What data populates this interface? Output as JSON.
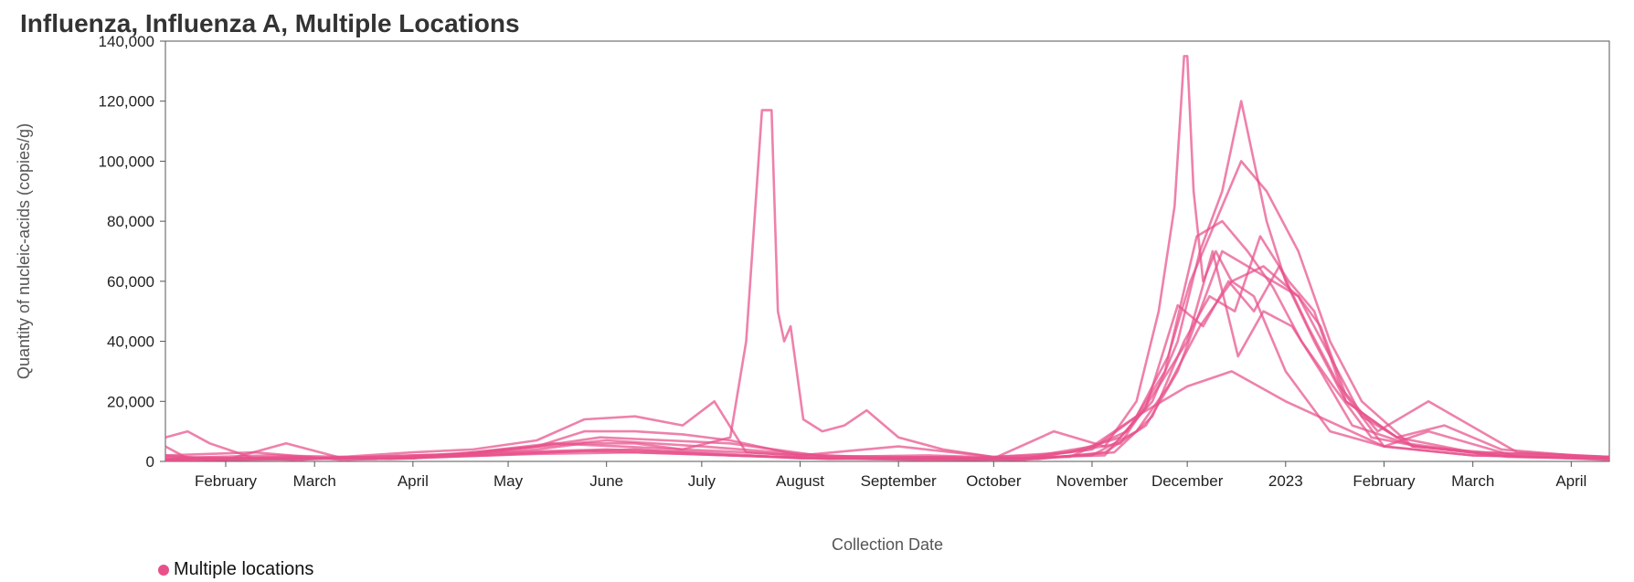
{
  "chart_data": {
    "type": "line",
    "title": "Influenza, Influenza A, Multiple Locations",
    "xlabel": "Collection Date",
    "ylabel": "Quantity of nucleic-acids (copies/g)",
    "ylim": [
      0,
      140000
    ],
    "xlim": [
      "2022-01-13",
      "2023-04-13"
    ],
    "y_ticks": [
      {
        "value": 0,
        "label": "0"
      },
      {
        "value": 20000,
        "label": "20,000"
      },
      {
        "value": 40000,
        "label": "40,000"
      },
      {
        "value": 60000,
        "label": "60,000"
      },
      {
        "value": 80000,
        "label": "80,000"
      },
      {
        "value": 100000,
        "label": "100,000"
      },
      {
        "value": 120000,
        "label": "120,000"
      },
      {
        "value": 140000,
        "label": "140,000"
      }
    ],
    "x_ticks": [
      {
        "date": "2022-02-01",
        "label": "February"
      },
      {
        "date": "2022-03-01",
        "label": "March"
      },
      {
        "date": "2022-04-01",
        "label": "April"
      },
      {
        "date": "2022-05-01",
        "label": "May"
      },
      {
        "date": "2022-06-01",
        "label": "June"
      },
      {
        "date": "2022-07-01",
        "label": "July"
      },
      {
        "date": "2022-08-01",
        "label": "August"
      },
      {
        "date": "2022-09-01",
        "label": "September"
      },
      {
        "date": "2022-10-01",
        "label": "October"
      },
      {
        "date": "2022-11-01",
        "label": "November"
      },
      {
        "date": "2022-12-01",
        "label": "December"
      },
      {
        "date": "2023-01-01",
        "label": "2023"
      },
      {
        "date": "2023-02-01",
        "label": "February"
      },
      {
        "date": "2023-03-01",
        "label": "March"
      },
      {
        "date": "2023-04-01",
        "label": "April"
      }
    ],
    "grid": false,
    "legend": {
      "position": "bottom-left",
      "label": "Multiple locations",
      "color": "#e8508a"
    },
    "line_color": "#e8508a",
    "series": [
      {
        "x": [
          "2022-01-13",
          "2022-01-20",
          "2022-01-27",
          "2022-02-10",
          "2022-02-24",
          "2022-03-10",
          "2022-04-01",
          "2022-04-20",
          "2022-05-10",
          "2022-05-25",
          "2022-06-10",
          "2022-06-25",
          "2022-07-10",
          "2022-07-15",
          "2022-07-20",
          "2022-07-23",
          "2022-07-25",
          "2022-07-27",
          "2022-07-29",
          "2022-08-02",
          "2022-08-08",
          "2022-08-15",
          "2022-08-22",
          "2022-09-01",
          "2022-09-15",
          "2022-10-01",
          "2022-10-15",
          "2022-11-01",
          "2022-11-15",
          "2022-12-01",
          "2022-12-15",
          "2023-01-01",
          "2023-02-01",
          "2023-03-01",
          "2023-04-13"
        ],
        "y": [
          5000,
          1000,
          500,
          800,
          1000,
          1200,
          2000,
          2500,
          4000,
          6000,
          6000,
          4000,
          8000,
          40000,
          117000,
          117000,
          50000,
          40000,
          45000,
          14000,
          10000,
          12000,
          17000,
          8000,
          4000,
          1500,
          2000,
          5000,
          15000,
          25000,
          30000,
          20000,
          5000,
          2000,
          1000
        ]
      },
      {
        "x": [
          "2022-01-13",
          "2022-01-20",
          "2022-01-27",
          "2022-02-10",
          "2022-02-24",
          "2022-03-10",
          "2022-04-01",
          "2022-04-20",
          "2022-05-10",
          "2022-05-25",
          "2022-06-10",
          "2022-06-25",
          "2022-07-05",
          "2022-07-15",
          "2022-08-01",
          "2022-09-01",
          "2022-10-01",
          "2022-10-20",
          "2022-11-05",
          "2022-11-15",
          "2022-11-22",
          "2022-11-27",
          "2022-11-30",
          "2022-12-01",
          "2022-12-03",
          "2022-12-06",
          "2022-12-10",
          "2022-12-15",
          "2022-12-22",
          "2023-01-01",
          "2023-01-15",
          "2023-02-01",
          "2023-03-01",
          "2023-04-13"
        ],
        "y": [
          8000,
          10000,
          6000,
          1000,
          500,
          1500,
          3000,
          4000,
          7000,
          14000,
          15000,
          12000,
          20000,
          3000,
          2000,
          1500,
          1000,
          10000,
          5000,
          20000,
          50000,
          85000,
          135000,
          135000,
          90000,
          60000,
          70000,
          60000,
          55000,
          30000,
          10000,
          5000,
          2000,
          1000
        ]
      },
      {
        "x": [
          "2022-01-13",
          "2022-02-01",
          "2022-02-20",
          "2022-03-10",
          "2022-04-01",
          "2022-04-20",
          "2022-05-10",
          "2022-05-25",
          "2022-06-10",
          "2022-06-25",
          "2022-07-10",
          "2022-08-01",
          "2022-09-01",
          "2022-10-01",
          "2022-10-25",
          "2022-11-10",
          "2022-11-20",
          "2022-11-28",
          "2022-12-05",
          "2022-12-12",
          "2022-12-18",
          "2022-12-22",
          "2022-12-26",
          "2023-01-01",
          "2023-01-10",
          "2023-01-20",
          "2023-02-05",
          "2023-03-01",
          "2023-04-13"
        ],
        "y": [
          2000,
          500,
          6000,
          1000,
          1000,
          3000,
          5000,
          10000,
          10000,
          9000,
          7000,
          2000,
          5000,
          1500,
          3000,
          8000,
          20000,
          40000,
          70000,
          90000,
          120000,
          100000,
          80000,
          60000,
          40000,
          20000,
          8000,
          3000,
          1500
        ]
      },
      {
        "x": [
          "2022-01-13",
          "2022-02-15",
          "2022-03-15",
          "2022-04-15",
          "2022-05-10",
          "2022-05-30",
          "2022-06-20",
          "2022-07-10",
          "2022-08-10",
          "2022-09-10",
          "2022-10-10",
          "2022-11-01",
          "2022-11-15",
          "2022-11-25",
          "2022-12-02",
          "2022-12-10",
          "2022-12-18",
          "2022-12-26",
          "2023-01-05",
          "2023-01-15",
          "2023-01-25",
          "2023-02-10",
          "2023-03-10",
          "2023-04-13"
        ],
        "y": [
          1500,
          1000,
          1000,
          2000,
          5000,
          8000,
          7000,
          6000,
          1500,
          2000,
          1000,
          4000,
          15000,
          35000,
          60000,
          80000,
          100000,
          90000,
          70000,
          40000,
          20000,
          5000,
          2000,
          800
        ]
      },
      {
        "x": [
          "2022-01-13",
          "2022-02-20",
          "2022-03-20",
          "2022-04-20",
          "2022-05-15",
          "2022-06-05",
          "2022-06-25",
          "2022-07-15",
          "2022-08-15",
          "2022-09-15",
          "2022-10-15",
          "2022-11-05",
          "2022-11-18",
          "2022-11-28",
          "2022-12-05",
          "2022-12-12",
          "2022-12-20",
          "2022-12-28",
          "2023-01-05",
          "2023-01-15",
          "2023-01-25",
          "2023-02-10",
          "2023-03-05",
          "2023-04-13"
        ],
        "y": [
          800,
          1200,
          800,
          3000,
          6000,
          5000,
          4000,
          3000,
          1000,
          1500,
          800,
          3000,
          12000,
          30000,
          50000,
          70000,
          65000,
          60000,
          55000,
          35000,
          15000,
          5000,
          3000,
          1500
        ]
      },
      {
        "x": [
          "2022-01-13",
          "2022-03-01",
          "2022-04-01",
          "2022-05-01",
          "2022-06-01",
          "2022-07-01",
          "2022-08-01",
          "2022-09-01",
          "2022-10-01",
          "2022-11-01",
          "2022-11-15",
          "2022-11-25",
          "2022-12-05",
          "2022-12-15",
          "2022-12-25",
          "2023-01-05",
          "2023-01-12",
          "2023-01-20",
          "2023-02-01",
          "2023-02-15",
          "2023-03-15",
          "2023-04-13"
        ],
        "y": [
          500,
          1000,
          2000,
          3000,
          4000,
          3000,
          1000,
          1000,
          800,
          2000,
          10000,
          25000,
          45000,
          60000,
          65000,
          55000,
          45000,
          22000,
          5000,
          10000,
          1500,
          800
        ]
      },
      {
        "x": [
          "2022-01-13",
          "2022-03-01",
          "2022-04-10",
          "2022-05-10",
          "2022-06-10",
          "2022-07-10",
          "2022-08-10",
          "2022-09-10",
          "2022-10-10",
          "2022-11-08",
          "2022-11-20",
          "2022-11-30",
          "2022-12-08",
          "2022-12-16",
          "2022-12-24",
          "2023-01-02",
          "2023-01-10",
          "2023-01-20",
          "2023-02-05",
          "2023-02-20",
          "2023-03-10",
          "2023-04-13"
        ],
        "y": [
          300,
          800,
          1500,
          2500,
          3000,
          2000,
          800,
          1200,
          500,
          3000,
          15000,
          40000,
          55000,
          50000,
          75000,
          60000,
          50000,
          20000,
          8000,
          12000,
          4000,
          1000
        ]
      },
      {
        "x": [
          "2022-01-13",
          "2022-02-15",
          "2022-04-01",
          "2022-05-01",
          "2022-06-01",
          "2022-07-01",
          "2022-08-01",
          "2022-09-01",
          "2022-10-01",
          "2022-11-05",
          "2022-11-18",
          "2022-11-28",
          "2022-12-06",
          "2022-12-14",
          "2022-12-22",
          "2022-12-30",
          "2023-01-08",
          "2023-01-18",
          "2023-01-30",
          "2023-02-15",
          "2023-03-15",
          "2023-04-13"
        ],
        "y": [
          1000,
          2000,
          1000,
          4000,
          7000,
          5000,
          2500,
          800,
          1000,
          2000,
          18000,
          52000,
          45000,
          60000,
          50000,
          65000,
          45000,
          25000,
          10000,
          20000,
          3000,
          1500
        ]
      },
      {
        "x": [
          "2022-01-13",
          "2022-02-10",
          "2022-03-10",
          "2022-04-10",
          "2022-05-10",
          "2022-06-10",
          "2022-07-10",
          "2022-08-10",
          "2022-09-10",
          "2022-10-10",
          "2022-11-10",
          "2022-11-22",
          "2022-12-01",
          "2022-12-09",
          "2022-12-17",
          "2022-12-25",
          "2023-01-03",
          "2023-01-12",
          "2023-01-22",
          "2023-02-08",
          "2023-03-08",
          "2023-04-13"
        ],
        "y": [
          2000,
          3000,
          500,
          1500,
          3000,
          4000,
          2000,
          1000,
          500,
          600,
          6000,
          25000,
          40000,
          70000,
          35000,
          50000,
          45000,
          30000,
          12000,
          6000,
          2000,
          500
        ]
      },
      {
        "x": [
          "2022-01-13",
          "2022-02-20",
          "2022-03-25",
          "2022-04-25",
          "2022-05-25",
          "2022-06-25",
          "2022-07-25",
          "2022-08-25",
          "2022-09-25",
          "2022-10-25",
          "2022-11-12",
          "2022-11-24",
          "2022-12-04",
          "2022-12-12",
          "2022-12-20",
          "2022-12-28",
          "2023-01-06",
          "2023-01-16",
          "2023-01-28",
          "2023-02-12",
          "2023-03-12",
          "2023-04-13"
        ],
        "y": [
          600,
          1500,
          800,
          2000,
          3500,
          2500,
          1500,
          800,
          600,
          1500,
          10000,
          30000,
          75000,
          80000,
          70000,
          58000,
          40000,
          25000,
          8000,
          5000,
          1500,
          1000
        ]
      }
    ]
  }
}
